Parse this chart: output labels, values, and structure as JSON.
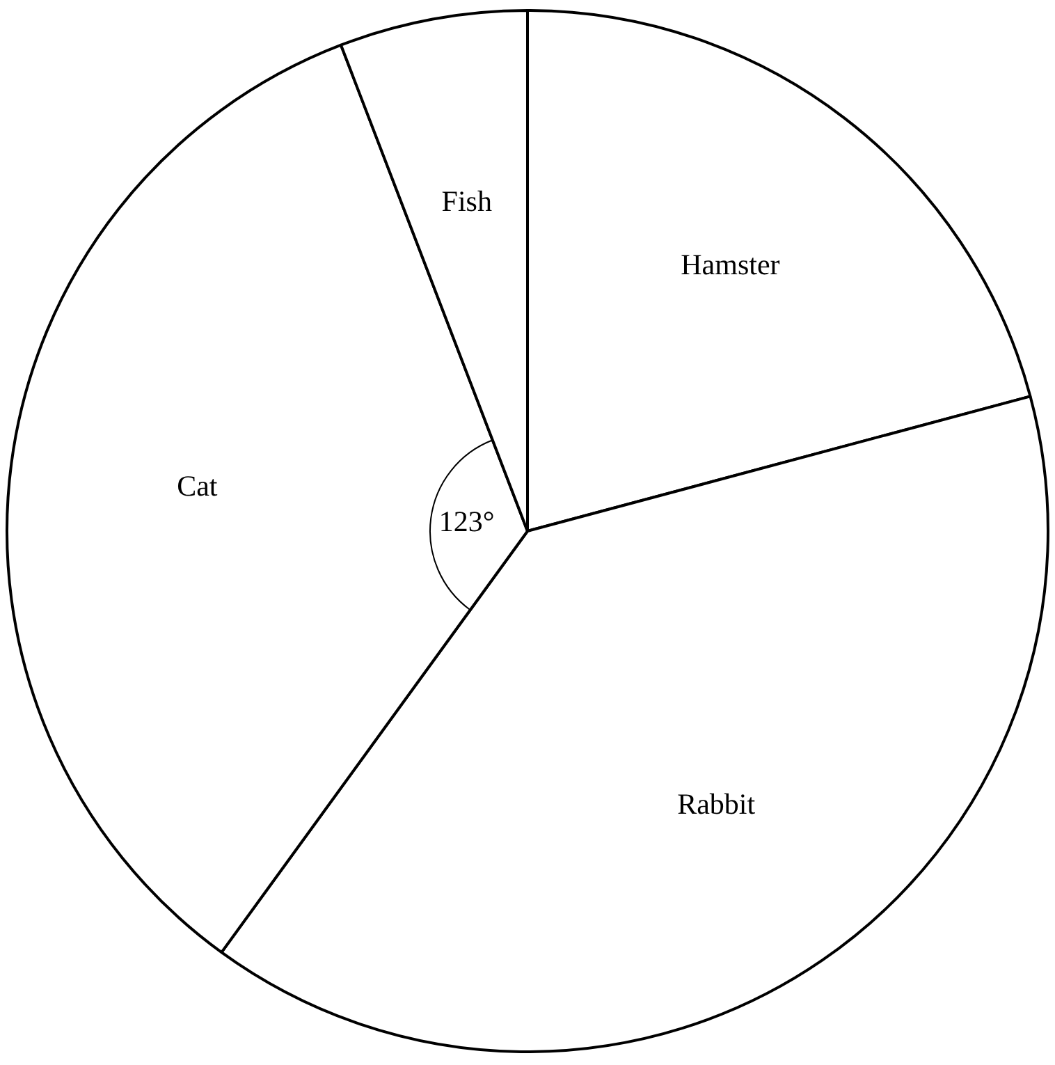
{
  "chart_data": {
    "type": "pie",
    "categories": [
      "Hamster",
      "Rabbit",
      "Cat",
      "Fish"
    ],
    "values": [
      75,
      141,
      123,
      21
    ],
    "colors": [
      "#ffffff",
      "#ffffff",
      "#ffffff",
      "#ffffff"
    ],
    "value_labels": [
      null,
      null,
      "123°",
      null
    ],
    "legend": false
  }
}
